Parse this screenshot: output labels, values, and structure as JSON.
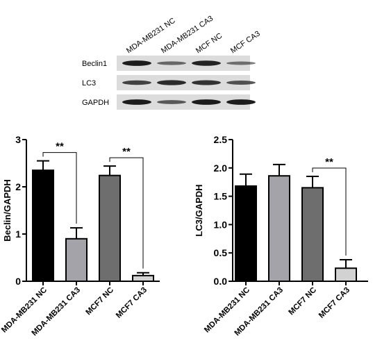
{
  "blot": {
    "lanes": [
      "MDA-MB231 NC",
      "MDA-MB231 CA3",
      "MCF NC",
      "MCF CA3"
    ],
    "rows": [
      {
        "label": "Beclin1",
        "intensity": [
          0.95,
          0.45,
          0.9,
          0.4
        ]
      },
      {
        "label": "LC3",
        "intensity": [
          0.7,
          0.85,
          0.8,
          0.6
        ]
      },
      {
        "label": "GAPDH",
        "intensity": [
          0.95,
          0.55,
          0.95,
          0.95
        ]
      }
    ]
  },
  "chart_data": [
    {
      "type": "bar",
      "ylabel": "Beclin/GAPDH",
      "ylim": [
        0,
        3
      ],
      "yticks": [
        "0",
        "1",
        "2",
        "3"
      ],
      "categories": [
        "MDA-MB231 NC",
        "MDA-MB231 CA3",
        "MCF7 NC",
        "MCF7 CA3"
      ],
      "values": [
        2.35,
        0.9,
        2.24,
        0.12
      ],
      "errors": [
        0.2,
        0.23,
        0.2,
        0.06
      ],
      "bar_colors": [
        "#000000",
        "#a3a3a9",
        "#6e6e6e",
        "#d2d2d2"
      ],
      "significance": [
        {
          "from": 0,
          "to": 1,
          "label": "**"
        },
        {
          "from": 2,
          "to": 3,
          "label": "**"
        }
      ]
    },
    {
      "type": "bar",
      "ylabel": "LC3/GAPDH",
      "ylim": [
        0,
        2.5
      ],
      "yticks": [
        "0.0",
        "0.5",
        "1.0",
        "1.5",
        "2.0",
        "2.5"
      ],
      "categories": [
        "MDA-MB231 NC",
        "MDA-MB231 CA3",
        "MCF7 NC",
        "MCF7 CA3"
      ],
      "values": [
        1.68,
        1.86,
        1.65,
        0.23
      ],
      "errors": [
        0.21,
        0.2,
        0.2,
        0.15
      ],
      "bar_colors": [
        "#000000",
        "#a3a3a9",
        "#6e6e6e",
        "#d2d2d2"
      ],
      "significance": [
        {
          "from": 2,
          "to": 3,
          "label": "**"
        }
      ]
    }
  ]
}
